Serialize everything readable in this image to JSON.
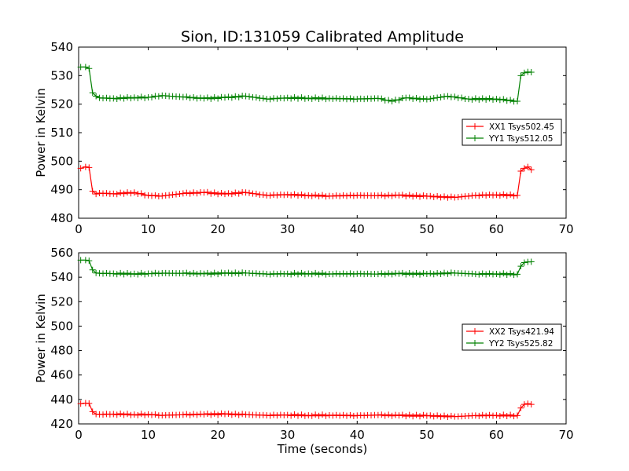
{
  "chart_data": [
    {
      "type": "line",
      "title": "Sion, ID:131059 Calibrated Amplitude",
      "xlabel": "",
      "ylabel": "Power in Kelvin",
      "xlim": [
        0,
        70
      ],
      "ylim": [
        480,
        540
      ],
      "xticks": [
        0,
        10,
        20,
        30,
        40,
        50,
        60,
        70
      ],
      "yticks": [
        480,
        490,
        500,
        510,
        520,
        530,
        540
      ],
      "grid": false,
      "legend_position": "right",
      "series": [
        {
          "name": "XX1 Tsys502.45",
          "color": "#ff0000",
          "marker": "+",
          "x": [
            0.3,
            1.0,
            1.5,
            2.0,
            2.5,
            3.0,
            5.0,
            8.0,
            10.0,
            12.0,
            15.0,
            18.0,
            21.0,
            24.0,
            27.0,
            30.0,
            33.0,
            36.0,
            40.0,
            43.0,
            46.0,
            50.0,
            54.0,
            57.0,
            60.0,
            63.0,
            63.5,
            64.0,
            64.5,
            65.0
          ],
          "values": [
            497.5,
            498.0,
            497.8,
            489.5,
            488.5,
            488.8,
            488.6,
            489.0,
            488.0,
            487.8,
            488.7,
            489.0,
            488.5,
            489.0,
            488.0,
            488.3,
            488.0,
            487.8,
            488.0,
            487.9,
            488.0,
            487.7,
            487.3,
            488.0,
            488.2,
            488.0,
            496.5,
            497.5,
            498.0,
            497.0
          ]
        },
        {
          "name": "YY1 Tsys512.05",
          "color": "#008000",
          "marker": "+",
          "x": [
            0.3,
            1.0,
            1.5,
            2.0,
            2.5,
            3.0,
            5.0,
            8.0,
            10.0,
            12.0,
            15.0,
            18.0,
            21.0,
            24.0,
            27.0,
            30.0,
            33.0,
            36.0,
            40.0,
            43.0,
            45.0,
            47.0,
            50.0,
            53.0,
            56.0,
            60.0,
            63.0,
            63.5,
            64.0,
            65.0
          ],
          "values": [
            533.0,
            533.0,
            532.5,
            524.0,
            522.8,
            522.2,
            522.0,
            522.3,
            522.4,
            523.0,
            522.5,
            522.0,
            522.3,
            522.8,
            521.8,
            522.2,
            522.1,
            522.0,
            521.8,
            522.0,
            521.0,
            522.2,
            521.7,
            522.8,
            521.8,
            521.8,
            521.0,
            530.0,
            531.0,
            531.2
          ]
        }
      ]
    },
    {
      "type": "line",
      "title": "",
      "xlabel": "Time (seconds)",
      "ylabel": "Power in Kelvin",
      "xlim": [
        0,
        70
      ],
      "ylim": [
        420,
        560
      ],
      "xticks": [
        0,
        10,
        20,
        30,
        40,
        50,
        60,
        70
      ],
      "yticks": [
        420,
        440,
        460,
        480,
        500,
        520,
        540,
        560
      ],
      "grid": false,
      "legend_position": "right",
      "series": [
        {
          "name": "XX2 Tsys421.94",
          "color": "#ff0000",
          "marker": "+",
          "x": [
            0.3,
            1.0,
            1.5,
            2.0,
            2.5,
            3.0,
            5.0,
            8.0,
            10.0,
            12.0,
            15.0,
            18.0,
            21.0,
            24.0,
            27.0,
            30.0,
            33.0,
            36.0,
            40.0,
            43.0,
            46.0,
            50.0,
            54.0,
            57.0,
            60.0,
            63.0,
            63.5,
            64.0,
            64.5,
            65.0
          ],
          "values": [
            436.5,
            437.0,
            436.8,
            430.0,
            428.0,
            427.8,
            428.0,
            427.6,
            427.8,
            427.0,
            427.5,
            427.8,
            428.0,
            427.6,
            427.0,
            427.3,
            427.0,
            427.1,
            426.8,
            427.2,
            426.9,
            426.7,
            426.0,
            426.8,
            427.0,
            426.8,
            433.0,
            436.0,
            436.5,
            436.0
          ]
        },
        {
          "name": "YY2 Tsys525.82",
          "color": "#008000",
          "marker": "+",
          "x": [
            0.3,
            1.0,
            1.5,
            2.0,
            2.5,
            3.0,
            5.0,
            8.0,
            10.0,
            12.0,
            15.0,
            18.0,
            21.0,
            24.0,
            27.0,
            30.0,
            33.0,
            36.0,
            40.0,
            43.0,
            46.0,
            50.0,
            54.0,
            57.0,
            60.0,
            63.0,
            63.5,
            64.0,
            64.5,
            65.0
          ],
          "values": [
            554.0,
            554.0,
            553.5,
            546.0,
            543.5,
            543.2,
            543.0,
            542.8,
            543.0,
            543.3,
            543.2,
            542.8,
            543.2,
            543.4,
            542.6,
            542.8,
            543.0,
            542.7,
            542.8,
            542.6,
            542.9,
            542.7,
            543.4,
            542.6,
            542.7,
            542.4,
            549.0,
            552.0,
            552.5,
            552.6
          ]
        }
      ]
    }
  ]
}
